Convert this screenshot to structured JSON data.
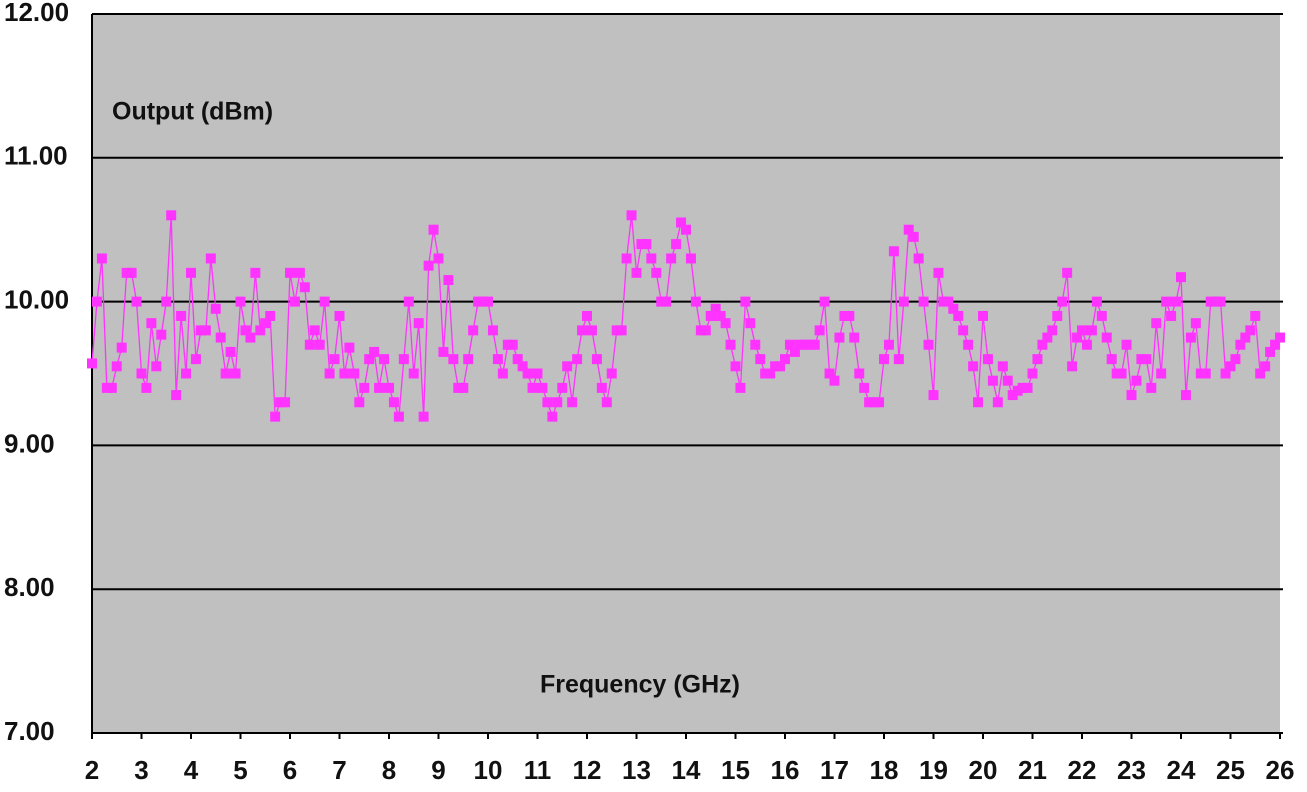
{
  "chart_data": {
    "type": "line",
    "annotations": [
      "Output (dBm)",
      "Frequency (GHz)"
    ],
    "x": [
      2,
      2.1,
      2.2,
      2.3,
      2.4,
      2.5,
      2.6,
      2.7,
      2.8,
      2.9,
      3,
      3.1,
      3.2,
      3.3,
      3.4,
      3.5,
      3.6,
      3.7,
      3.8,
      3.9,
      4,
      4.1,
      4.2,
      4.3,
      4.4,
      4.5,
      4.6,
      4.7,
      4.8,
      4.9,
      5,
      5.1,
      5.2,
      5.3,
      5.4,
      5.5,
      5.6,
      5.7,
      5.8,
      5.9,
      6,
      6.1,
      6.2,
      6.3,
      6.4,
      6.5,
      6.6,
      6.7,
      6.8,
      6.9,
      7,
      7.1,
      7.2,
      7.3,
      7.4,
      7.5,
      7.6,
      7.7,
      7.8,
      7.9,
      8,
      8.1,
      8.2,
      8.3,
      8.4,
      8.5,
      8.6,
      8.7,
      8.8,
      8.9,
      9,
      9.1,
      9.2,
      9.3,
      9.4,
      9.5,
      9.6,
      9.7,
      9.8,
      9.9,
      10,
      10.1,
      10.2,
      10.3,
      10.4,
      10.5,
      10.6,
      10.7,
      10.8,
      10.9,
      11,
      11.1,
      11.2,
      11.3,
      11.4,
      11.5,
      11.6,
      11.7,
      11.8,
      11.9,
      12,
      12.1,
      12.2,
      12.3,
      12.4,
      12.5,
      12.6,
      12.7,
      12.8,
      12.9,
      13,
      13.1,
      13.2,
      13.3,
      13.4,
      13.5,
      13.6,
      13.7,
      13.8,
      13.9,
      14,
      14.1,
      14.2,
      14.3,
      14.4,
      14.5,
      14.6,
      14.7,
      14.8,
      14.9,
      15,
      15.1,
      15.2,
      15.3,
      15.4,
      15.5,
      15.6,
      15.7,
      15.8,
      15.9,
      16,
      16.1,
      16.2,
      16.3,
      16.4,
      16.5,
      16.6,
      16.7,
      16.8,
      16.9,
      17,
      17.1,
      17.2,
      17.3,
      17.4,
      17.5,
      17.6,
      17.7,
      17.8,
      17.9,
      18,
      18.1,
      18.2,
      18.3,
      18.4,
      18.5,
      18.6,
      18.7,
      18.8,
      18.9,
      19,
      19.1,
      19.2,
      19.3,
      19.4,
      19.5,
      19.6,
      19.7,
      19.8,
      19.9,
      20,
      20.1,
      20.2,
      20.3,
      20.4,
      20.5,
      20.6,
      20.7,
      20.8,
      20.9,
      21,
      21.1,
      21.2,
      21.3,
      21.4,
      21.5,
      21.6,
      21.7,
      21.8,
      21.9,
      22,
      22.1,
      22.2,
      22.3,
      22.4,
      22.5,
      22.6,
      22.7,
      22.8,
      22.9,
      23,
      23.1,
      23.2,
      23.3,
      23.4,
      23.5,
      23.6,
      23.7,
      23.8,
      23.9,
      24,
      24.1,
      24.2,
      24.3,
      24.4,
      24.5,
      24.6,
      24.7,
      24.8,
      24.9,
      25,
      25.1,
      25.2,
      25.3,
      25.4,
      25.5,
      25.6,
      25.7,
      25.8,
      25.9,
      26
    ],
    "values": [
      9.57,
      10.0,
      10.3,
      9.4,
      9.4,
      9.55,
      9.68,
      10.2,
      10.2,
      10.0,
      9.5,
      9.4,
      9.85,
      9.55,
      9.77,
      10.0,
      10.6,
      9.35,
      9.9,
      9.5,
      10.2,
      9.6,
      9.8,
      9.8,
      10.3,
      9.95,
      9.75,
      9.5,
      9.65,
      9.5,
      10.0,
      9.8,
      9.75,
      10.2,
      9.8,
      9.85,
      9.9,
      9.2,
      9.3,
      9.3,
      10.2,
      10.0,
      10.2,
      10.1,
      9.7,
      9.8,
      9.7,
      10.0,
      9.5,
      9.6,
      9.9,
      9.5,
      9.68,
      9.5,
      9.3,
      9.4,
      9.6,
      9.65,
      9.4,
      9.6,
      9.4,
      9.3,
      9.2,
      9.6,
      10.0,
      9.5,
      9.85,
      9.2,
      10.25,
      10.5,
      10.3,
      9.65,
      10.15,
      9.6,
      9.4,
      9.4,
      9.6,
      9.8,
      10.0,
      10.0,
      10.0,
      9.8,
      9.6,
      9.5,
      9.7,
      9.7,
      9.6,
      9.55,
      9.5,
      9.4,
      9.5,
      9.4,
      9.3,
      9.2,
      9.3,
      9.4,
      9.55,
      9.3,
      9.6,
      9.8,
      9.9,
      9.8,
      9.6,
      9.4,
      9.3,
      9.5,
      9.8,
      9.8,
      10.3,
      10.6,
      10.2,
      10.4,
      10.4,
      10.3,
      10.2,
      10.0,
      10.0,
      10.3,
      10.4,
      10.55,
      10.5,
      10.3,
      10.0,
      9.8,
      9.8,
      9.9,
      9.95,
      9.9,
      9.85,
      9.7,
      9.55,
      9.4,
      10.0,
      9.85,
      9.7,
      9.6,
      9.5,
      9.5,
      9.55,
      9.55,
      9.6,
      9.7,
      9.65,
      9.7,
      9.7,
      9.7,
      9.7,
      9.8,
      10.0,
      9.5,
      9.45,
      9.75,
      9.9,
      9.9,
      9.75,
      9.5,
      9.4,
      9.3,
      9.3,
      9.3,
      9.6,
      9.7,
      10.35,
      9.6,
      10.0,
      10.5,
      10.45,
      10.3,
      10.0,
      9.7,
      9.35,
      10.2,
      10.0,
      10.0,
      9.95,
      9.9,
      9.8,
      9.7,
      9.55,
      9.3,
      9.9,
      9.6,
      9.45,
      9.3,
      9.55,
      9.45,
      9.35,
      9.38,
      9.4,
      9.4,
      9.5,
      9.6,
      9.7,
      9.75,
      9.8,
      9.9,
      10.0,
      10.2,
      9.55,
      9.75,
      9.8,
      9.7,
      9.8,
      10.0,
      9.9,
      9.75,
      9.6,
      9.5,
      9.5,
      9.7,
      9.35,
      9.45,
      9.6,
      9.6,
      9.4,
      9.85,
      9.5,
      10.0,
      9.9,
      10.0,
      10.17,
      9.35,
      9.75,
      9.85,
      9.5,
      9.5,
      10.0,
      10.0,
      10.0,
      9.5,
      9.55,
      9.6,
      9.7,
      9.75,
      9.8,
      9.9,
      9.5,
      9.55,
      9.65,
      9.7,
      9.75
    ],
    "color": "#ff33ff",
    "background": "#c0c0c0",
    "grid": true,
    "xlim": [
      2,
      26
    ],
    "xticks": [
      2,
      3,
      4,
      5,
      6,
      7,
      8,
      9,
      10,
      11,
      12,
      13,
      14,
      15,
      16,
      17,
      18,
      19,
      20,
      21,
      22,
      23,
      24,
      25,
      26
    ],
    "ylim": [
      7,
      12
    ],
    "yticks": [
      {
        "value": 7,
        "label": "7.00"
      },
      {
        "value": 8,
        "label": "8.00"
      },
      {
        "value": 9,
        "label": "9.00"
      },
      {
        "value": 10,
        "label": "10.00"
      },
      {
        "value": 11,
        "label": "11.00"
      },
      {
        "value": 12,
        "label": "12.00"
      }
    ]
  }
}
